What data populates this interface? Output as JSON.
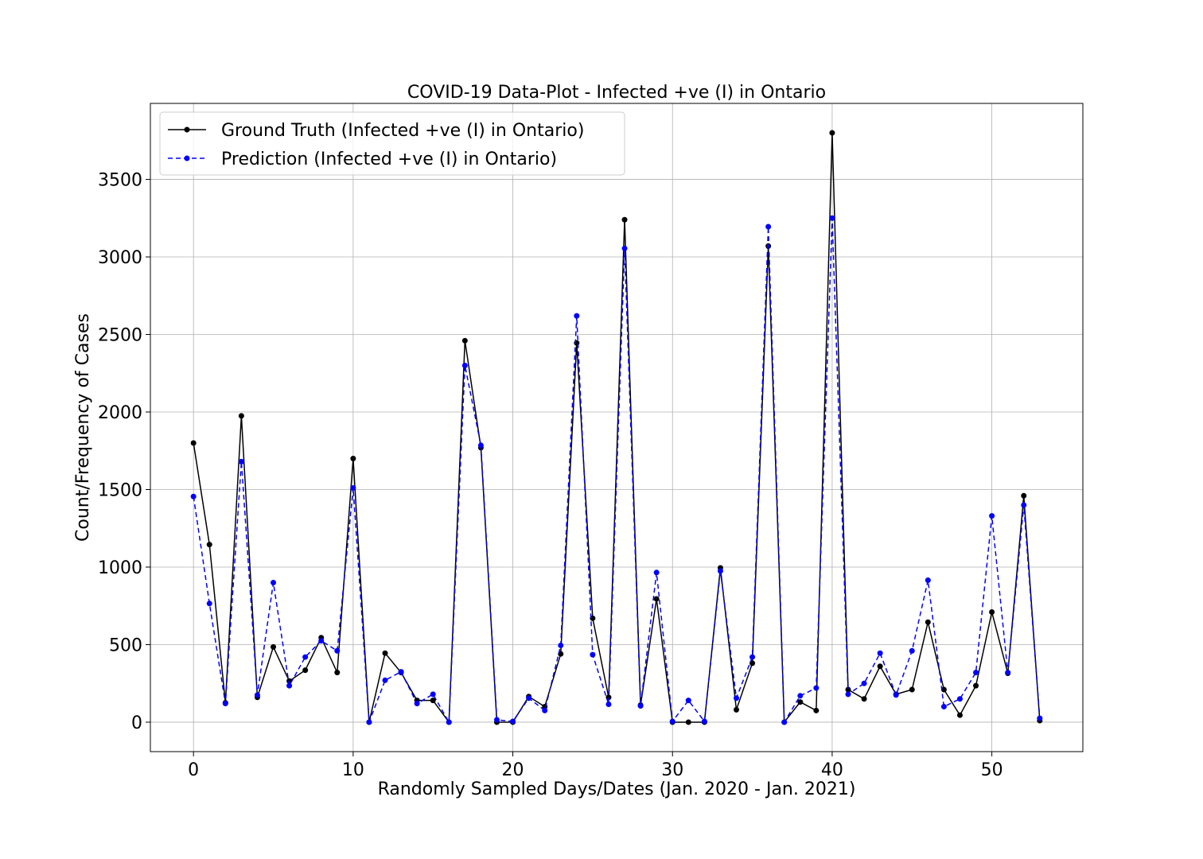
{
  "chart_data": {
    "type": "line",
    "title": "COVID-19 Data-Plot - Infected +ve (I) in Ontario",
    "xlabel": "Randomly Sampled Days/Dates (Jan. 2020 - Jan. 2021)",
    "ylabel": "Count/Frequency of Cases",
    "xlim": [
      -2.7,
      55.7
    ],
    "ylim": [
      -190,
      3990
    ],
    "xticks": [
      0,
      10,
      20,
      30,
      40,
      50
    ],
    "yticks": [
      0,
      500,
      1000,
      1500,
      2000,
      2500,
      3000,
      3500
    ],
    "grid": true,
    "legend_position": "top-left",
    "x": [
      0,
      1,
      2,
      3,
      4,
      5,
      6,
      7,
      8,
      9,
      10,
      11,
      12,
      13,
      14,
      15,
      16,
      17,
      18,
      19,
      20,
      21,
      22,
      23,
      24,
      25,
      26,
      27,
      28,
      29,
      30,
      31,
      32,
      33,
      34,
      35,
      36,
      37,
      38,
      39,
      40,
      41,
      42,
      43,
      44,
      45,
      46,
      47,
      48,
      49,
      50,
      51,
      52,
      53
    ],
    "series": [
      {
        "name": "Ground Truth (Infected +ve (I) in Ontario)",
        "color": "#000000",
        "line_style": "solid",
        "values": [
          1800,
          1145,
          125,
          1975,
          160,
          485,
          265,
          335,
          545,
          320,
          1700,
          0,
          445,
          320,
          140,
          140,
          0,
          2460,
          1770,
          0,
          0,
          165,
          100,
          440,
          2445,
          670,
          160,
          3240,
          110,
          795,
          0,
          0,
          0,
          995,
          80,
          380,
          3070,
          0,
          130,
          75,
          3800,
          210,
          150,
          360,
          180,
          210,
          645,
          210,
          45,
          235,
          710,
          315,
          1460,
          10
        ]
      },
      {
        "name": "Prediction (Infected +ve (I) in Ontario)",
        "color": "#0000ff",
        "line_style": "dashed",
        "values": [
          1455,
          765,
          120,
          1680,
          175,
          900,
          235,
          420,
          525,
          460,
          1510,
          0,
          270,
          325,
          120,
          180,
          0,
          2300,
          1785,
          15,
          5,
          155,
          75,
          495,
          2620,
          435,
          115,
          3055,
          105,
          965,
          5,
          140,
          5,
          975,
          155,
          420,
          3195,
          0,
          170,
          220,
          3250,
          180,
          250,
          445,
          175,
          460,
          915,
          100,
          150,
          320,
          1330,
          320,
          1400,
          25
        ]
      }
    ]
  }
}
